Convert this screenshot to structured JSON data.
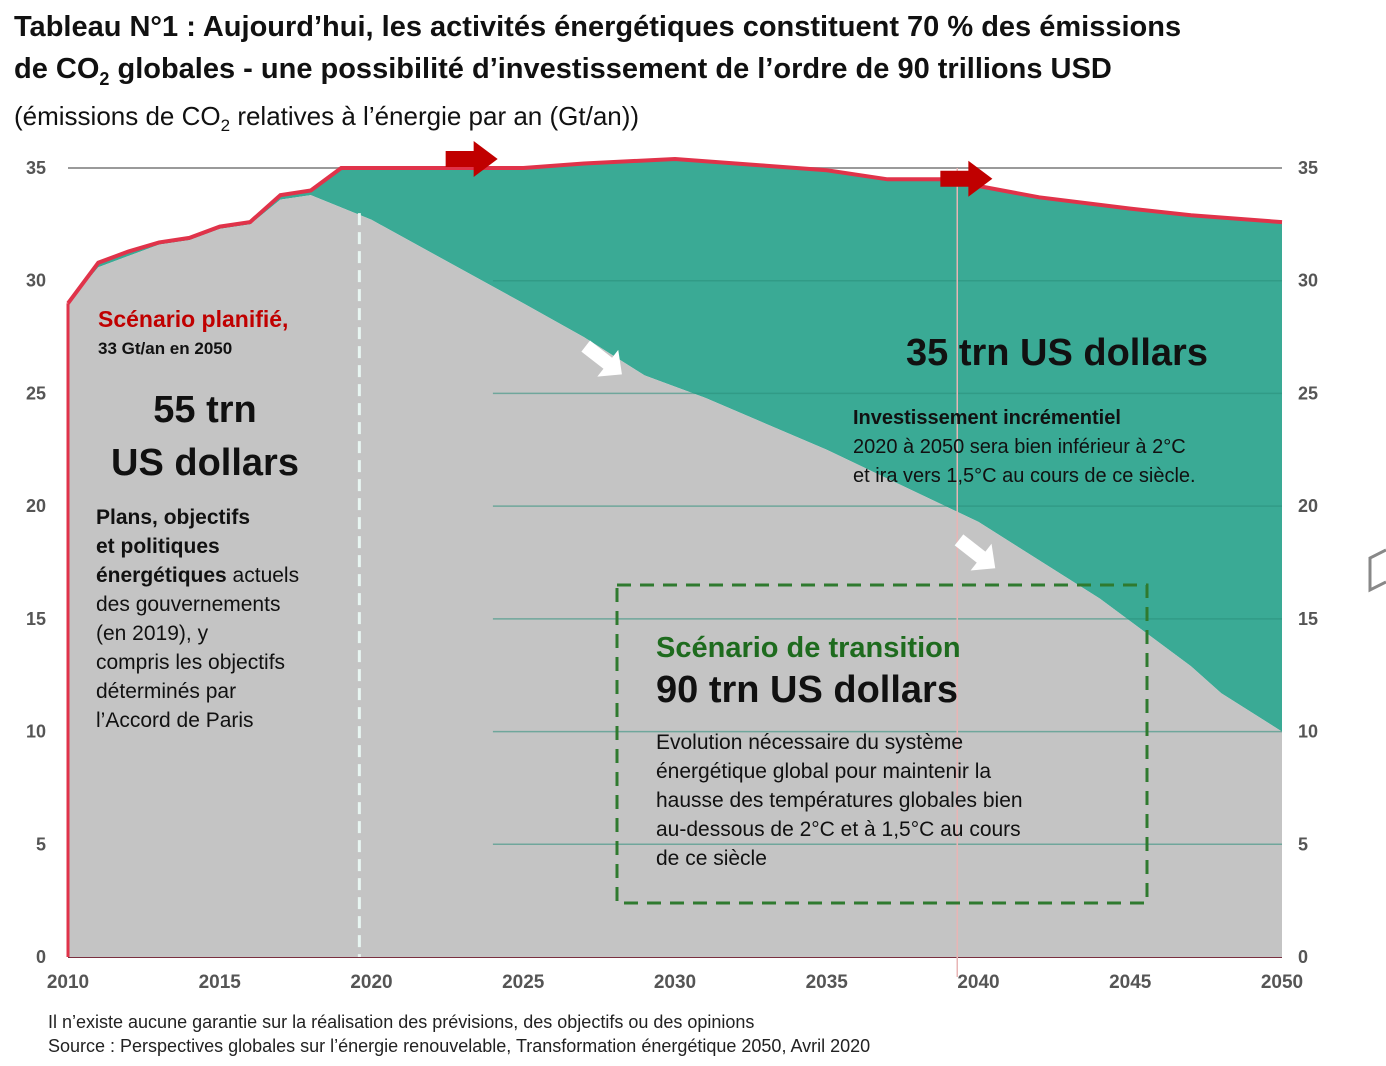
{
  "title": {
    "line1": "Tableau N°1 : Aujourd’hui, les activités énergétiques constituent 70 % des émissions",
    "line2_pre": "de CO",
    "line2_sub": "2",
    "line2_post": " globales - une possibilité d’investissement de l’ordre de 90 trillions USD",
    "subtitle_pre": "(émissions de CO",
    "subtitle_sub": "2",
    "subtitle_post": " relatives à l’énergie par an (Gt/an))"
  },
  "chart_data": {
    "type": "area",
    "x_ticks": [
      2010,
      2015,
      2020,
      2025,
      2030,
      2035,
      2040,
      2045,
      2050
    ],
    "y_ticks": [
      0,
      5,
      10,
      15,
      20,
      25,
      30,
      35
    ],
    "xlim": [
      2010,
      2050
    ],
    "ylim": [
      0,
      35
    ],
    "series": [
      {
        "name": "Scénario planifié",
        "color": "#e0334a",
        "points": [
          [
            2010,
            29
          ],
          [
            2011,
            30.8
          ],
          [
            2012,
            31.3
          ],
          [
            2013,
            31.7
          ],
          [
            2014,
            31.9
          ],
          [
            2015,
            32.4
          ],
          [
            2016,
            32.6
          ],
          [
            2017,
            33.8
          ],
          [
            2018,
            34.0
          ],
          [
            2019,
            35.0
          ],
          [
            2022,
            35.0
          ],
          [
            2025,
            35.0
          ],
          [
            2027,
            35.2
          ],
          [
            2030,
            35.4
          ],
          [
            2033,
            35.1
          ],
          [
            2035,
            34.9
          ],
          [
            2037,
            34.5
          ],
          [
            2039,
            34.5
          ],
          [
            2040,
            34.2
          ],
          [
            2042,
            33.7
          ],
          [
            2045,
            33.2
          ],
          [
            2047,
            32.9
          ],
          [
            2050,
            32.6
          ]
        ]
      },
      {
        "name": "Scénario de transition",
        "color": "#3aaa95",
        "points": [
          [
            2010,
            29
          ],
          [
            2011,
            30.6
          ],
          [
            2012,
            31.1
          ],
          [
            2013,
            31.6
          ],
          [
            2014,
            31.8
          ],
          [
            2015,
            32.3
          ],
          [
            2016,
            32.5
          ],
          [
            2017,
            33.6
          ],
          [
            2018,
            33.8
          ],
          [
            2020,
            32.7
          ],
          [
            2025,
            29.0
          ],
          [
            2027,
            27.5
          ],
          [
            2029,
            25.8
          ],
          [
            2031,
            24.8
          ],
          [
            2035,
            22.5
          ],
          [
            2040,
            19.3
          ],
          [
            2044,
            15.9
          ],
          [
            2047,
            12.9
          ],
          [
            2048,
            11.7
          ],
          [
            2050,
            10.0
          ]
        ]
      }
    ],
    "vline_x": 2019.6,
    "arrows": [
      "red-arrow-2023",
      "red-arrow-2039",
      "white-arrow-2028",
      "white-arrow-2041"
    ],
    "annotations": {
      "planned_label": "Scénario planifié,",
      "planned_sub": "33 Gt/an en 2050",
      "planned_amount_1": "55 trn",
      "planned_amount_2": "US dollars",
      "planned_desc_1": "Plans, objectifs",
      "planned_desc_2": "et politiques",
      "planned_desc_3b": "énergétiques",
      "planned_desc_3": " actuels",
      "planned_desc_4": "des gouvernements",
      "planned_desc_5": "(en 2019), y",
      "planned_desc_6": "compris les objectifs",
      "planned_desc_7": "déterminés par",
      "planned_desc_8": "l’Accord de Paris",
      "incremental_amount": "35 trn US dollars",
      "incremental_title": "Investissement incrémentiel",
      "incremental_desc_1": "2020 à 2050 sera bien inférieur à 2°C",
      "incremental_desc_2": "et ira vers 1,5°C au cours de ce siècle.",
      "transition_label": "Scénario de transition",
      "transition_amount": "90 trn US dollars",
      "transition_desc_1": "Evolution nécessaire du système",
      "transition_desc_2": "énergétique global pour maintenir la",
      "transition_desc_3": "hausse des températures globales bien",
      "transition_desc_4": "au-dessous de 2°C et à 1,5°C au cours",
      "transition_desc_5": "de ce siècle"
    },
    "colors": {
      "grey_area": "#c4c4c4",
      "teal_area": "#3aaa95",
      "red_line": "#e0334a",
      "arrow_red": "#c00000",
      "green_box": "#2f7a2f"
    }
  },
  "footnotes": {
    "line1": "Il n’existe aucune garantie sur la réalisation des prévisions, des objectifs ou des opinions",
    "line2": "Source : Perspectives globales sur l’énergie renouvelable, Transformation énergétique 2050, Avril 2020"
  }
}
